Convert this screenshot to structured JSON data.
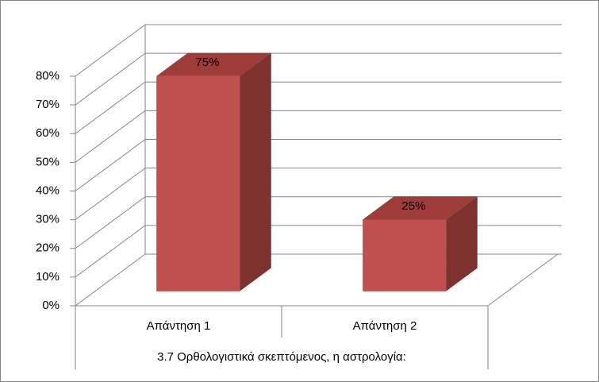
{
  "chart_data": {
    "type": "bar3d",
    "categories": [
      "Απάντηση 1",
      "Απάντηση 2"
    ],
    "values": [
      75,
      25
    ],
    "value_labels": [
      "75%",
      "25%"
    ],
    "color": "#c0504d",
    "x_label": "3.7 Ορθολογιστικά σκεπτόμενος, η αστρολογία:",
    "ylim": [
      0,
      80
    ],
    "yticks": [
      {
        "value": 0,
        "label": "0%"
      },
      {
        "value": 10,
        "label": "10%"
      },
      {
        "value": 20,
        "label": "20%"
      },
      {
        "value": 30,
        "label": "30%"
      },
      {
        "value": 40,
        "label": "40%"
      },
      {
        "value": 50,
        "label": "50%"
      },
      {
        "value": 60,
        "label": "60%"
      },
      {
        "value": 70,
        "label": "70%"
      },
      {
        "value": 80,
        "label": "80%"
      }
    ],
    "grid": true
  }
}
